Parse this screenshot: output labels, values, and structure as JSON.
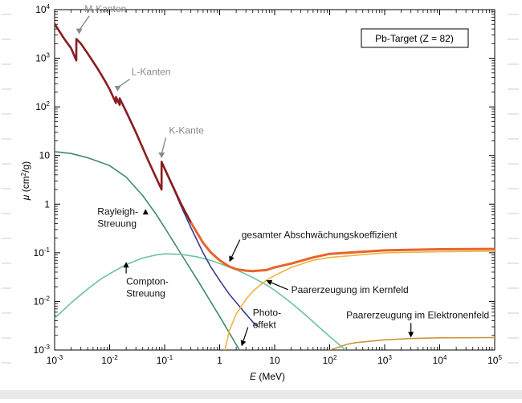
{
  "chart_data": {
    "type": "line",
    "x_scale": "log",
    "y_scale": "log",
    "xlim": [
      0.001,
      100000
    ],
    "ylim": [
      0.001,
      10000
    ],
    "xlabel_var": "E",
    "xlabel_unit": " (MeV)",
    "ylabel_var": "μ",
    "ylabel_unit_pre": " (cm",
    "ylabel_unit_sup": "2",
    "ylabel_unit_post": "/g)",
    "x_ticks": [
      {
        "value": 0.001,
        "base": "10",
        "exp": "-3"
      },
      {
        "value": 0.01,
        "base": "10",
        "exp": "-2"
      },
      {
        "value": 0.1,
        "base": "10",
        "exp": "-1"
      },
      {
        "value": 1,
        "base": "1",
        "exp": ""
      },
      {
        "value": 10,
        "base": "10",
        "exp": ""
      },
      {
        "value": 100,
        "base": "10",
        "exp": "2"
      },
      {
        "value": 1000,
        "base": "10",
        "exp": "3"
      },
      {
        "value": 10000,
        "base": "10",
        "exp": "4"
      },
      {
        "value": 100000,
        "base": "10",
        "exp": "5"
      }
    ],
    "y_ticks": [
      {
        "value": 0.001,
        "base": "10",
        "exp": "-3"
      },
      {
        "value": 0.01,
        "base": "10",
        "exp": "-2"
      },
      {
        "value": 0.1,
        "base": "10",
        "exp": "-1"
      },
      {
        "value": 1,
        "base": "1",
        "exp": ""
      },
      {
        "value": 10,
        "base": "10",
        "exp": ""
      },
      {
        "value": 100,
        "base": "10",
        "exp": "2"
      },
      {
        "value": 1000,
        "base": "10",
        "exp": "3"
      },
      {
        "value": 10000,
        "base": "10",
        "exp": "4"
      }
    ],
    "legend_box": "Pb-Target (Z = 82)",
    "series": [
      {
        "name": "Rayleigh-Streuung",
        "color": "#3d8a6a",
        "x": [
          0.001,
          0.002,
          0.004,
          0.007,
          0.01,
          0.02,
          0.04,
          0.07,
          0.1,
          0.2,
          0.4,
          0.7,
          1,
          2,
          4
        ],
        "y": [
          12,
          11,
          9,
          7.2,
          6.2,
          3.6,
          1.5,
          0.62,
          0.33,
          0.094,
          0.027,
          0.0095,
          0.0049,
          0.0013,
          0.00035
        ]
      },
      {
        "name": "Compton-Streuung",
        "color": "#6cc49a",
        "x": [
          0.001,
          0.002,
          0.004,
          0.007,
          0.01,
          0.02,
          0.04,
          0.07,
          0.1,
          0.2,
          0.4,
          0.7,
          1,
          2,
          4,
          7,
          10,
          20,
          40,
          70,
          100,
          200
        ],
        "y": [
          0.0045,
          0.0093,
          0.018,
          0.029,
          0.037,
          0.057,
          0.078,
          0.09,
          0.095,
          0.093,
          0.082,
          0.069,
          0.06,
          0.045,
          0.031,
          0.022,
          0.017,
          0.0093,
          0.0048,
          0.0027,
          0.0019,
          0.00097
        ]
      },
      {
        "name": "Photoeffekt",
        "color": "#3b3a8f",
        "x": [
          0.08801,
          0.1,
          0.15,
          0.2,
          0.3,
          0.5,
          0.7,
          1,
          1.5,
          2,
          3,
          4,
          5
        ],
        "y": [
          7.5,
          5.2,
          1.9,
          0.9,
          0.33,
          0.1,
          0.05,
          0.027,
          0.014,
          0.0095,
          0.0055,
          0.0038,
          0.003
        ]
      },
      {
        "name": "Paarerzeugung im Kernfeld",
        "color": "#f0b340",
        "x": [
          1.25,
          1.5,
          2,
          3,
          4,
          5,
          7,
          10,
          20,
          50,
          100,
          1000,
          10000,
          100000
        ],
        "y": [
          0.001,
          0.0025,
          0.0055,
          0.011,
          0.016,
          0.02,
          0.027,
          0.034,
          0.05,
          0.07,
          0.08,
          0.1,
          0.105,
          0.108
        ]
      },
      {
        "name": "Paarerzeugung im Elektronenfeld",
        "color": "#c9963a",
        "x": [
          100,
          150,
          200,
          300,
          500,
          1000,
          3000,
          10000,
          100000
        ],
        "y": [
          0.001,
          0.00115,
          0.0013,
          0.00142,
          0.0015,
          0.00162,
          0.00172,
          0.00178,
          0.0018
        ]
      },
      {
        "name": "gesamter Abschwächungskoeffizient",
        "color_high": "#e8642b",
        "color_low": "#8a1c22",
        "x": [
          0.001,
          0.0015,
          0.002,
          0.00248,
          0.00249,
          0.003,
          0.004,
          0.006,
          0.008,
          0.01,
          0.013,
          0.013035,
          0.0152,
          0.01521,
          0.02,
          0.03,
          0.05,
          0.07,
          0.08799,
          0.088,
          0.1,
          0.15,
          0.2,
          0.3,
          0.5,
          0.7,
          1,
          1.5,
          2,
          3,
          4,
          5,
          7,
          10,
          20,
          50,
          100,
          1000,
          10000,
          100000
        ],
        "y": [
          5100,
          2500,
          1600,
          900,
          2500,
          2000,
          1250,
          620,
          360,
          230,
          120,
          160,
          110,
          150,
          80,
          30,
          8.0,
          3.5,
          2.0,
          7.4,
          5.4,
          2.0,
          1.0,
          0.42,
          0.16,
          0.1,
          0.07,
          0.052,
          0.046,
          0.043,
          0.042,
          0.043,
          0.044,
          0.05,
          0.06,
          0.08,
          0.095,
          0.112,
          0.118,
          0.12
        ]
      }
    ],
    "annotations": [
      {
        "name": "M-Kanten",
        "lines": [
          "M-Kanten"
        ],
        "color": "#8a8a8a",
        "x": 0.0035,
        "y": 9000,
        "arrow_to": [
          0.0028,
          3000
        ]
      },
      {
        "name": "L-Kanten",
        "lines": [
          "L-Kanten"
        ],
        "color": "#8a8a8a",
        "x": 0.025,
        "y": 450,
        "arrow_to": [
          0.014,
          200
        ]
      },
      {
        "name": "K-Kante",
        "lines": [
          "K-Kante"
        ],
        "color": "#8a8a8a",
        "x": 0.12,
        "y": 28,
        "arrow_to": [
          0.088,
          8.5
        ]
      },
      {
        "name": "Rayleigh-Streuung",
        "lines": [
          "Rayleigh-",
          "Streuung"
        ],
        "color": "#111111",
        "x": 0.006,
        "y": 0.6,
        "arrow_to": [
          0.045,
          0.8
        ]
      },
      {
        "name": "Compton-Streuung",
        "lines": [
          "Compton-",
          "Streuung"
        ],
        "color": "#111111",
        "x": 0.02,
        "y": 0.022,
        "arrow_to": [
          0.02,
          0.065
        ]
      },
      {
        "name": "Photoeffekt",
        "lines": [
          "Photo-",
          "effekt"
        ],
        "color": "#111111",
        "x": 4,
        "y": 0.005,
        "arrow_to": [
          2.5,
          0.0012
        ]
      },
      {
        "name": "Paarerzeugung im Kernfeld",
        "lines": [
          "Paarerzeugung im Kernfeld"
        ],
        "color": "#111111",
        "x": 20,
        "y": 0.015,
        "arrow_to": [
          7,
          0.027
        ]
      },
      {
        "name": "Paarerzeugung im Elektronenfeld",
        "lines": [
          "Paarerzeugung im Elektronenfeld"
        ],
        "color": "#111111",
        "x": 200,
        "y": 0.0045,
        "arrow_to": [
          3000,
          0.0018
        ]
      },
      {
        "name": "gesamter Abschwächungskoeffizient",
        "lines": [
          "gesamter Abschwächungskoeffizient"
        ],
        "color": "#111111",
        "x": 2.5,
        "y": 0.2,
        "arrow_to": [
          1.5,
          0.065
        ]
      }
    ]
  }
}
